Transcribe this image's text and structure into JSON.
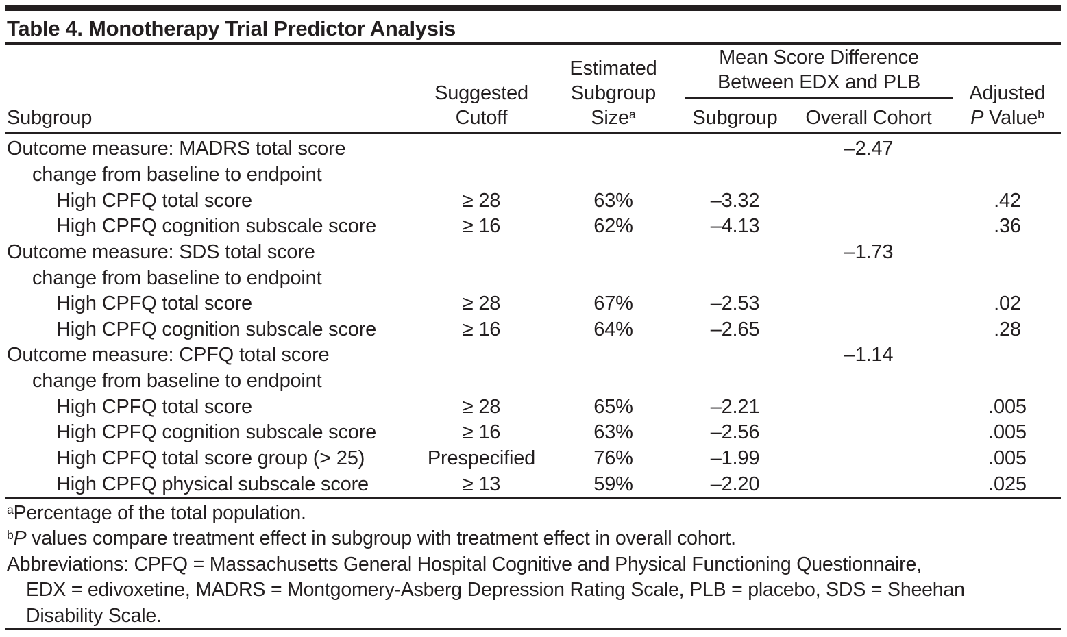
{
  "meta": {
    "background": "#ffffff",
    "text_color": "#231f20",
    "rule_color": "#231f20"
  },
  "title": "Table 4. Monotherapy Trial Predictor Analysis",
  "table": {
    "header": {
      "subgroup": "Subgroup",
      "suggested_cutoff_line1": "Suggested",
      "suggested_cutoff_line2": "Cutoff",
      "estimated_line1": "Estimated",
      "estimated_line2": "Subgroup",
      "estimated_line3": "Size",
      "estimated_sup": "a",
      "spanner_line1": "Mean Score Difference",
      "spanner_line2": "Between EDX and PLB",
      "msd_subgroup": "Subgroup",
      "msd_overall": "Overall Cohort",
      "adjusted_line1": "Adjusted",
      "adjusted_p_italic": "P",
      "adjusted_p_rest": " Value",
      "adjusted_sup": "b"
    },
    "rows": [
      {
        "label": "Outcome measure: MADRS total score",
        "indent": 0,
        "cutoff": "",
        "size": "",
        "msd_subgroup": "",
        "overall_cohort": "–2.47",
        "p_value": ""
      },
      {
        "label": "change from baseline to endpoint",
        "indent": 1,
        "cutoff": "",
        "size": "",
        "msd_subgroup": "",
        "overall_cohort": "",
        "p_value": ""
      },
      {
        "label": "High CPFQ total score",
        "indent": 2,
        "cutoff": "≥ 28",
        "size": "63%",
        "msd_subgroup": "–3.32",
        "overall_cohort": "",
        "p_value": ".42"
      },
      {
        "label": "High CPFQ cognition subscale score",
        "indent": 2,
        "cutoff": "≥ 16",
        "size": "62%",
        "msd_subgroup": "–4.13",
        "overall_cohort": "",
        "p_value": ".36"
      },
      {
        "label": "Outcome measure: SDS total score",
        "indent": 0,
        "cutoff": "",
        "size": "",
        "msd_subgroup": "",
        "overall_cohort": "–1.73",
        "p_value": ""
      },
      {
        "label": "change from baseline to endpoint",
        "indent": 1,
        "cutoff": "",
        "size": "",
        "msd_subgroup": "",
        "overall_cohort": "",
        "p_value": ""
      },
      {
        "label": "High CPFQ total score",
        "indent": 2,
        "cutoff": "≥ 28",
        "size": "67%",
        "msd_subgroup": "–2.53",
        "overall_cohort": "",
        "p_value": ".02"
      },
      {
        "label": "High CPFQ cognition subscale score",
        "indent": 2,
        "cutoff": "≥ 16",
        "size": "64%",
        "msd_subgroup": "–2.65",
        "overall_cohort": "",
        "p_value": ".28"
      },
      {
        "label": "Outcome measure: CPFQ total score",
        "indent": 0,
        "cutoff": "",
        "size": "",
        "msd_subgroup": "",
        "overall_cohort": "–1.14",
        "p_value": ""
      },
      {
        "label": "change from baseline to endpoint",
        "indent": 1,
        "cutoff": "",
        "size": "",
        "msd_subgroup": "",
        "overall_cohort": "",
        "p_value": ""
      },
      {
        "label": "High CPFQ total score",
        "indent": 2,
        "cutoff": "≥ 28",
        "size": "65%",
        "msd_subgroup": "–2.21",
        "overall_cohort": "",
        "p_value": ".005"
      },
      {
        "label": "High CPFQ cognition subscale score",
        "indent": 2,
        "cutoff": "≥ 16",
        "size": "63%",
        "msd_subgroup": "–2.56",
        "overall_cohort": "",
        "p_value": ".005"
      },
      {
        "label": "High CPFQ total score group (> 25)",
        "indent": 2,
        "cutoff": "Prespecified",
        "size": "76%",
        "msd_subgroup": "–1.99",
        "overall_cohort": "",
        "p_value": ".005"
      },
      {
        "label": "High CPFQ physical subscale score",
        "indent": 2,
        "cutoff": "≥ 13",
        "size": "59%",
        "msd_subgroup": "–2.20",
        "overall_cohort": "",
        "p_value": ".025"
      }
    ]
  },
  "footnotes": {
    "a_sup": "a",
    "a_text": "Percentage of the total population.",
    "b_sup": "b",
    "b_italic": "P",
    "b_text": " values compare treatment effect in subgroup with treatment effect in overall cohort.",
    "abbr_line1": "Abbreviations: CPFQ = Massachusetts General Hospital Cognitive and Physical Functioning Questionnaire,",
    "abbr_line2": "EDX = edivoxetine, MADRS = Montgomery-Asberg Depression Rating Scale, PLB = placebo, SDS = Sheehan",
    "abbr_line3": "Disability Scale."
  }
}
